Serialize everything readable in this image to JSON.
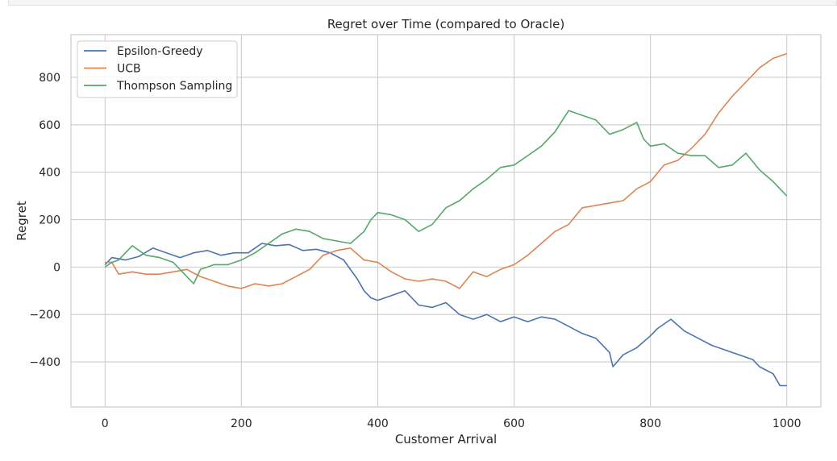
{
  "chart_data": {
    "type": "line",
    "title": "Regret over Time (compared to Oracle)",
    "xlabel": "Customer Arrival",
    "ylabel": "Regret",
    "xlim": [
      -50,
      1050
    ],
    "ylim": [
      -590,
      980
    ],
    "xticks": [
      0,
      200,
      400,
      600,
      800,
      1000
    ],
    "yticks": [
      -400,
      -200,
      0,
      200,
      400,
      600,
      800
    ],
    "xtick_labels": [
      "0",
      "200",
      "400",
      "600",
      "800",
      "1000"
    ],
    "ytick_labels": [
      "−400",
      "−200",
      "0",
      "200",
      "400",
      "600",
      "800"
    ],
    "grid": true,
    "legend_position": "top-left",
    "series": [
      {
        "name": "Epsilon-Greedy",
        "color": "#4c72b0",
        "x": [
          0,
          10,
          30,
          50,
          70,
          90,
          110,
          130,
          150,
          170,
          190,
          210,
          230,
          250,
          270,
          290,
          310,
          330,
          350,
          370,
          380,
          390,
          400,
          420,
          440,
          460,
          480,
          500,
          520,
          540,
          560,
          580,
          600,
          620,
          640,
          660,
          680,
          700,
          720,
          740,
          745,
          760,
          780,
          800,
          810,
          830,
          850,
          870,
          890,
          910,
          930,
          950,
          960,
          980,
          990,
          1000
        ],
        "y": [
          10,
          40,
          30,
          45,
          80,
          60,
          40,
          60,
          70,
          50,
          60,
          60,
          100,
          90,
          95,
          70,
          75,
          60,
          30,
          -50,
          -100,
          -130,
          -140,
          -120,
          -100,
          -160,
          -170,
          -150,
          -200,
          -220,
          -200,
          -230,
          -210,
          -230,
          -210,
          -220,
          -250,
          -280,
          -300,
          -360,
          -420,
          -370,
          -340,
          -290,
          -260,
          -220,
          -270,
          -300,
          -330,
          -350,
          -370,
          -390,
          -420,
          -450,
          -500,
          -500
        ]
      },
      {
        "name": "UCB",
        "color": "#dd8452",
        "x": [
          0,
          10,
          20,
          40,
          60,
          80,
          100,
          120,
          140,
          160,
          180,
          200,
          220,
          240,
          260,
          280,
          300,
          320,
          340,
          360,
          380,
          400,
          420,
          440,
          460,
          480,
          500,
          520,
          540,
          560,
          580,
          600,
          620,
          640,
          660,
          680,
          700,
          720,
          740,
          760,
          780,
          800,
          820,
          840,
          860,
          880,
          900,
          920,
          940,
          960,
          980,
          1000
        ],
        "y": [
          20,
          20,
          -30,
          -20,
          -30,
          -30,
          -20,
          -10,
          -40,
          -60,
          -80,
          -90,
          -70,
          -80,
          -70,
          -40,
          -10,
          50,
          70,
          80,
          30,
          20,
          -20,
          -50,
          -60,
          -50,
          -60,
          -90,
          -20,
          -40,
          -10,
          10,
          50,
          100,
          150,
          180,
          250,
          260,
          270,
          280,
          330,
          360,
          430,
          450,
          500,
          560,
          650,
          720,
          780,
          840,
          880,
          900
        ]
      },
      {
        "name": "Thompson Sampling",
        "color": "#55a868",
        "x": [
          0,
          10,
          20,
          30,
          40,
          50,
          60,
          80,
          100,
          120,
          130,
          140,
          160,
          180,
          200,
          220,
          240,
          260,
          280,
          300,
          320,
          340,
          360,
          380,
          390,
          400,
          420,
          440,
          460,
          480,
          500,
          520,
          540,
          560,
          580,
          600,
          620,
          640,
          660,
          680,
          700,
          720,
          740,
          760,
          780,
          790,
          800,
          820,
          840,
          860,
          880,
          900,
          920,
          940,
          960,
          980,
          1000
        ],
        "y": [
          0,
          20,
          30,
          60,
          90,
          70,
          50,
          40,
          20,
          -40,
          -70,
          -10,
          10,
          10,
          30,
          60,
          100,
          140,
          160,
          150,
          120,
          110,
          100,
          150,
          200,
          230,
          220,
          200,
          150,
          180,
          250,
          280,
          330,
          370,
          420,
          430,
          470,
          510,
          570,
          660,
          640,
          620,
          560,
          580,
          610,
          540,
          510,
          520,
          480,
          470,
          470,
          420,
          430,
          480,
          410,
          360,
          300
        ]
      }
    ]
  }
}
